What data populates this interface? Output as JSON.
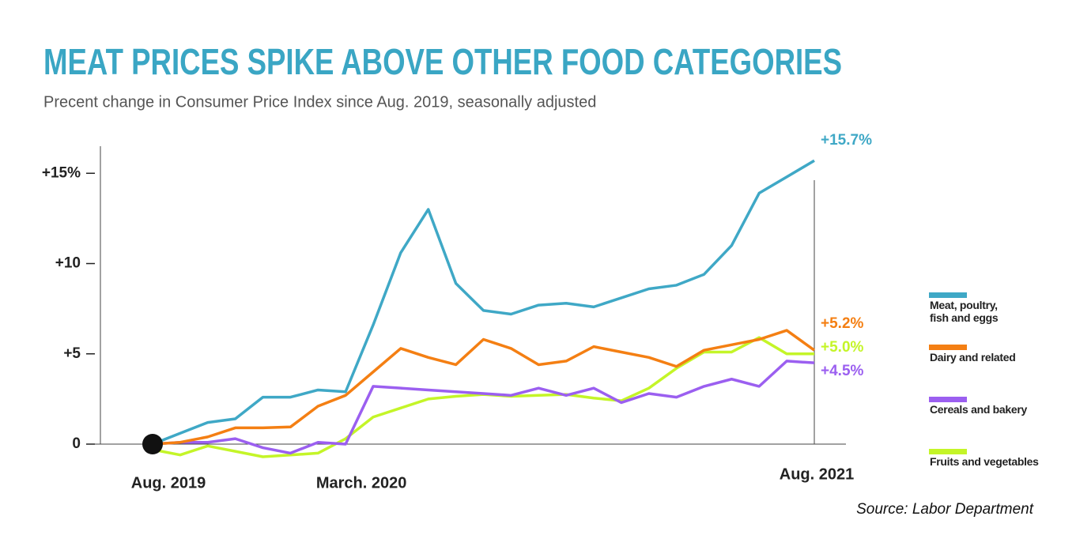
{
  "chart_data": {
    "type": "line",
    "title": "MEAT PRICES SPIKE ABOVE OTHER FOOD CATEGORIES",
    "subtitle": "Precent change in Consumer Price Index since Aug. 2019, seasonally adjusted",
    "source": "Source: Labor Department",
    "categories": [
      "Aug. 2019",
      null,
      null,
      null,
      null,
      null,
      null,
      "March. 2020",
      null,
      null,
      null,
      null,
      null,
      null,
      null,
      null,
      null,
      null,
      null,
      null,
      null,
      null,
      null,
      null,
      "Aug. 2021"
    ],
    "ylim": [
      0,
      16.5
    ],
    "yticks": [
      0,
      {
        "value": 5,
        "label": "+5"
      },
      {
        "value": 10,
        "label": "+10"
      },
      {
        "value": 15,
        "label": "+15%"
      }
    ],
    "legend": "right",
    "series": [
      {
        "name": "Meat, poultry, fish and eggs",
        "color": "#3fa8c6",
        "values": [
          0,
          0.6,
          1.2,
          1.4,
          2.6,
          2.6,
          3.0,
          2.9,
          6.6,
          10.6,
          13.0,
          8.9,
          7.4,
          7.2,
          7.7,
          7.8,
          7.6,
          8.1,
          8.6,
          8.8,
          9.4,
          11.0,
          13.9,
          14.8,
          15.7
        ],
        "value_labels": [
          null,
          null,
          null,
          null,
          null,
          null,
          null,
          null,
          null,
          null,
          null,
          null,
          null,
          null,
          null,
          null,
          null,
          null,
          null,
          null,
          null,
          null,
          null,
          null,
          "+15.7%"
        ]
      },
      {
        "name": "Dairy and related",
        "color": "#f47f13",
        "values": [
          0,
          0.1,
          0.4,
          0.9,
          0.9,
          0.95,
          2.1,
          2.7,
          4.0,
          5.3,
          4.8,
          4.4,
          5.8,
          5.3,
          4.4,
          4.6,
          5.4,
          5.1,
          4.8,
          4.3,
          5.2,
          5.5,
          5.8,
          6.3,
          5.2
        ],
        "value_labels": [
          null,
          null,
          null,
          null,
          null,
          null,
          null,
          null,
          null,
          null,
          null,
          null,
          null,
          null,
          null,
          null,
          null,
          null,
          null,
          null,
          null,
          null,
          null,
          null,
          "+5.2%"
        ]
      },
      {
        "name": "Cereals and bakery",
        "color": "#9b5ff0",
        "values": [
          0,
          0.1,
          0.1,
          0.3,
          -0.2,
          -0.5,
          0.1,
          0,
          3.2,
          3.1,
          3.0,
          2.9,
          2.8,
          2.7,
          3.1,
          2.7,
          3.1,
          2.3,
          2.8,
          2.6,
          3.2,
          3.6,
          3.2,
          4.6,
          4.5
        ],
        "value_labels": [
          null,
          null,
          null,
          null,
          null,
          null,
          null,
          null,
          null,
          null,
          null,
          null,
          null,
          null,
          null,
          null,
          null,
          null,
          null,
          null,
          null,
          null,
          null,
          null,
          "+4.5%"
        ]
      },
      {
        "name": "Fruits and vegetables",
        "color": "#c4f528",
        "values": [
          -0.3,
          -0.6,
          -0.1,
          -0.4,
          -0.7,
          -0.6,
          -0.5,
          0.3,
          1.5,
          2.0,
          2.5,
          2.65,
          2.75,
          2.65,
          2.7,
          2.75,
          2.55,
          2.4,
          3.1,
          4.2,
          5.1,
          5.1,
          5.9,
          5.0,
          5.0
        ],
        "value_labels": [
          null,
          null,
          null,
          null,
          null,
          null,
          null,
          null,
          null,
          null,
          null,
          null,
          null,
          null,
          null,
          null,
          null,
          null,
          null,
          null,
          null,
          null,
          null,
          null,
          "+5.0%"
        ]
      }
    ]
  }
}
